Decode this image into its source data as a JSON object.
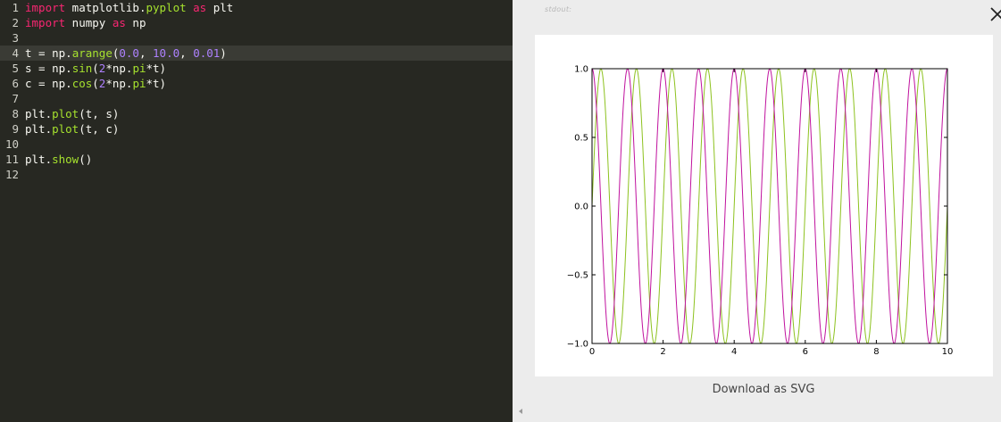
{
  "editor": {
    "lines": [
      {
        "num": "1",
        "segments": [
          {
            "t": "import",
            "c": "k"
          },
          {
            "t": " matplotlib.",
            "c": ""
          },
          {
            "t": "pyplot",
            "c": "f"
          },
          {
            "t": " ",
            "c": ""
          },
          {
            "t": "as",
            "c": "k"
          },
          {
            "t": " plt",
            "c": ""
          }
        ]
      },
      {
        "num": "2",
        "segments": [
          {
            "t": "import",
            "c": "k"
          },
          {
            "t": " numpy ",
            "c": ""
          },
          {
            "t": "as",
            "c": "k"
          },
          {
            "t": " np",
            "c": ""
          }
        ]
      },
      {
        "num": "3",
        "segments": []
      },
      {
        "num": "4",
        "active": true,
        "segments": [
          {
            "t": "t = np.",
            "c": ""
          },
          {
            "t": "arange",
            "c": "f"
          },
          {
            "t": "(",
            "c": ""
          },
          {
            "t": "0.0",
            "c": "n"
          },
          {
            "t": ", ",
            "c": ""
          },
          {
            "t": "10.0",
            "c": "n"
          },
          {
            "t": ", ",
            "c": ""
          },
          {
            "t": "0.01",
            "c": "n"
          },
          {
            "t": ")",
            "c": ""
          }
        ]
      },
      {
        "num": "5",
        "segments": [
          {
            "t": "s = np.",
            "c": ""
          },
          {
            "t": "sin",
            "c": "f"
          },
          {
            "t": "(",
            "c": ""
          },
          {
            "t": "2",
            "c": "n"
          },
          {
            "t": "*np.",
            "c": ""
          },
          {
            "t": "pi",
            "c": "f"
          },
          {
            "t": "*t)",
            "c": ""
          }
        ]
      },
      {
        "num": "6",
        "segments": [
          {
            "t": "c = np.",
            "c": ""
          },
          {
            "t": "cos",
            "c": "f"
          },
          {
            "t": "(",
            "c": ""
          },
          {
            "t": "2",
            "c": "n"
          },
          {
            "t": "*np.",
            "c": ""
          },
          {
            "t": "pi",
            "c": "f"
          },
          {
            "t": "*t)",
            "c": ""
          }
        ]
      },
      {
        "num": "7",
        "segments": []
      },
      {
        "num": "8",
        "segments": [
          {
            "t": "plt.",
            "c": ""
          },
          {
            "t": "plot",
            "c": "f"
          },
          {
            "t": "(t, s)",
            "c": ""
          }
        ]
      },
      {
        "num": "9",
        "segments": [
          {
            "t": "plt.",
            "c": ""
          },
          {
            "t": "plot",
            "c": "f"
          },
          {
            "t": "(t, c)",
            "c": ""
          }
        ]
      },
      {
        "num": "10",
        "segments": []
      },
      {
        "num": "11",
        "segments": [
          {
            "t": "plt.",
            "c": ""
          },
          {
            "t": "show",
            "c": "f"
          },
          {
            "t": "()",
            "c": ""
          }
        ]
      },
      {
        "num": "12",
        "segments": []
      }
    ]
  },
  "output": {
    "stdout_label": "stdout:",
    "close_icon": "close-icon",
    "download_label": "Download as SVG",
    "scroll_icon": "scroll-left-arrow-icon"
  },
  "chart_data": {
    "type": "line",
    "x_range": [
      0,
      10
    ],
    "ylim": [
      -1.0,
      1.0
    ],
    "xticks": [
      0,
      2,
      4,
      6,
      8,
      10
    ],
    "xtick_labels": [
      "0",
      "2",
      "4",
      "6",
      "8",
      "10"
    ],
    "yticks": [
      -1.0,
      -0.5,
      0.0,
      0.5,
      1.0
    ],
    "ytick_labels": [
      "−1.0",
      "−0.5",
      "0.0",
      "0.5",
      "1.0"
    ],
    "x_step": 0.01,
    "series": [
      {
        "formula": "sin(2*pi*t)",
        "color": "#8dc21f"
      },
      {
        "formula": "cos(2*pi*t)",
        "color": "#c0129e"
      }
    ],
    "grid": false
  }
}
